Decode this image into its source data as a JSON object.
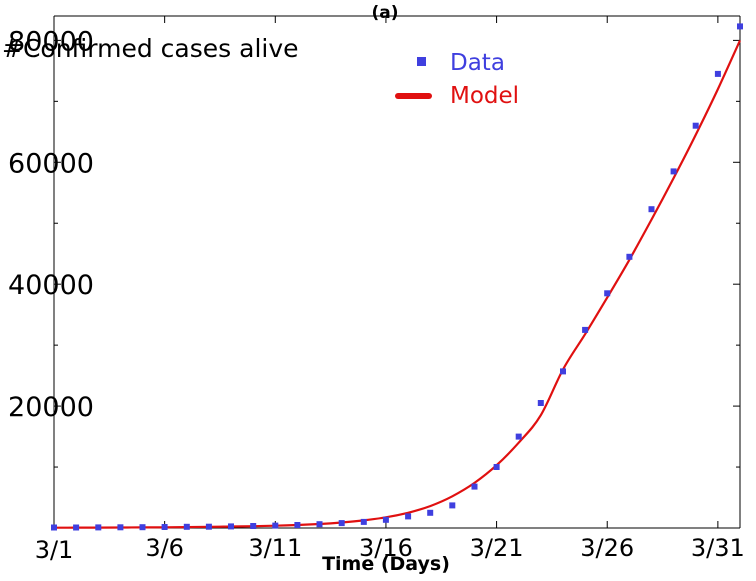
{
  "chart_data": {
    "type": "line",
    "title": "(a)",
    "ylabel": "#Confirmed cases alive",
    "xlabel": "Time (Days)",
    "xlim": [
      1,
      32
    ],
    "ylim": [
      0,
      84000
    ],
    "x_ticks": [
      {
        "value": 1,
        "label": "3/1"
      },
      {
        "value": 6,
        "label": "3/6"
      },
      {
        "value": 11,
        "label": "3/11"
      },
      {
        "value": 16,
        "label": "3/16"
      },
      {
        "value": 21,
        "label": "3/21"
      },
      {
        "value": 26,
        "label": "3/26"
      },
      {
        "value": 31,
        "label": "3/31"
      }
    ],
    "y_ticks": [
      {
        "value": 20000,
        "label": "20000"
      },
      {
        "value": 40000,
        "label": "40000"
      },
      {
        "value": 60000,
        "label": "60000"
      },
      {
        "value": 80000,
        "label": "80000"
      }
    ],
    "y_minor_ticks": [
      10000,
      30000,
      50000,
      70000
    ],
    "legend_position": "top-center",
    "series": [
      {
        "name": "Data",
        "style": "markers",
        "color": "#3f3fdf",
        "x": [
          1,
          2,
          3,
          4,
          5,
          6,
          7,
          8,
          9,
          10,
          11,
          12,
          13,
          14,
          15,
          16,
          17,
          18,
          19,
          20,
          21,
          22,
          23,
          24,
          25,
          26,
          27,
          28,
          29,
          30,
          31,
          32
        ],
        "values": [
          80,
          90,
          100,
          110,
          130,
          160,
          190,
          220,
          260,
          320,
          400,
          500,
          620,
          800,
          1000,
          1350,
          1900,
          2500,
          3700,
          6800,
          10000,
          15000,
          20500,
          25700,
          32500,
          38500,
          44500,
          52300,
          58500,
          66000,
          74500,
          82300
        ]
      },
      {
        "name": "Model",
        "style": "line",
        "color": "#e01010",
        "x": [
          1,
          2,
          3,
          4,
          5,
          6,
          7,
          8,
          9,
          10,
          11,
          12,
          13,
          14,
          15,
          16,
          17,
          18,
          19,
          20,
          21,
          22,
          23,
          24,
          25,
          26,
          27,
          28,
          29,
          30,
          31,
          32
        ],
        "values": [
          50,
          60,
          70,
          85,
          100,
          120,
          150,
          190,
          240,
          300,
          380,
          500,
          650,
          900,
          1250,
          1750,
          2500,
          3600,
          5200,
          7400,
          10300,
          14000,
          18500,
          26000,
          31800,
          37800,
          44000,
          50600,
          57400,
          64500,
          72000,
          80000
        ]
      }
    ]
  }
}
